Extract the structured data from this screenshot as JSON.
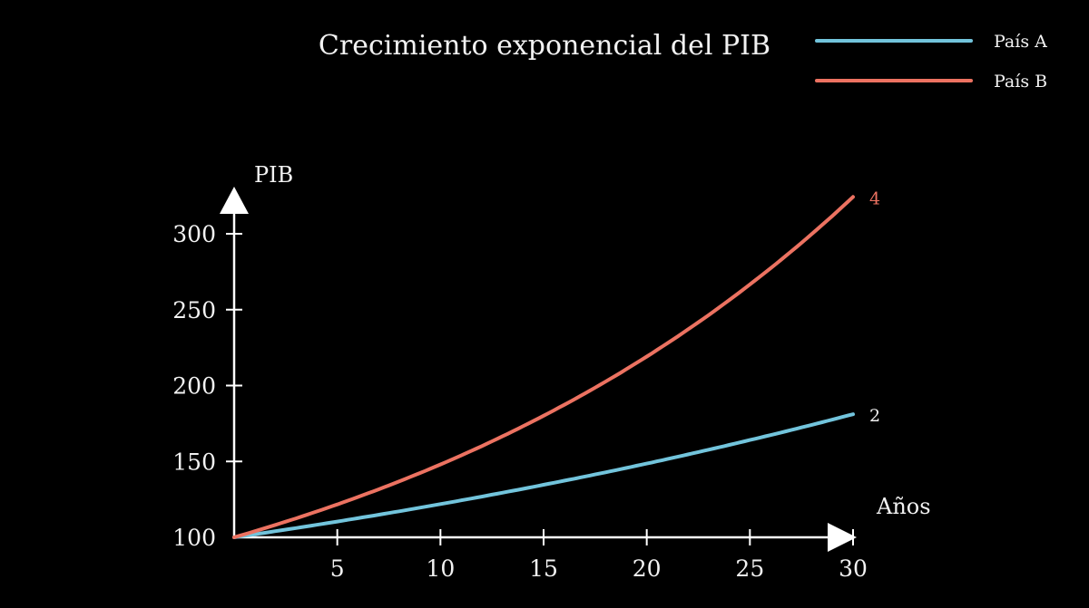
{
  "colors": {
    "background": "#000000",
    "text": "#f2f2f2",
    "axis": "#ffffff",
    "series_a": "#72c4dc",
    "series_b": "#ec7261"
  },
  "chart_data": {
    "type": "line",
    "title": "Crecimiento exponencial del PIB",
    "xlabel": "Años",
    "ylabel": "PIB",
    "xlim": [
      0,
      30
    ],
    "ylim": [
      100,
      320
    ],
    "x_ticks": [
      5,
      10,
      15,
      20,
      25,
      30
    ],
    "y_ticks": [
      100,
      150,
      200,
      250,
      300
    ],
    "x_tick_labels": [
      "5",
      "10",
      "15",
      "20",
      "25",
      "30"
    ],
    "y_tick_labels": [
      "100",
      "150",
      "200",
      "250",
      "300"
    ],
    "grid": false,
    "legend_position": "top-right",
    "x": [
      0,
      5,
      10,
      15,
      20,
      25,
      30
    ],
    "series": [
      {
        "name": "País A",
        "color": "#72c4dc",
        "rate_percent": 2,
        "end_label": "2",
        "values": [
          100,
          110.4,
          121.9,
          134.6,
          148.6,
          164.1,
          181.1
        ]
      },
      {
        "name": "País B",
        "color": "#ec7261",
        "rate_percent": 4,
        "end_label": "4",
        "values": [
          100,
          121.7,
          148.0,
          180.1,
          219.1,
          266.6,
          324.3
        ]
      }
    ]
  }
}
